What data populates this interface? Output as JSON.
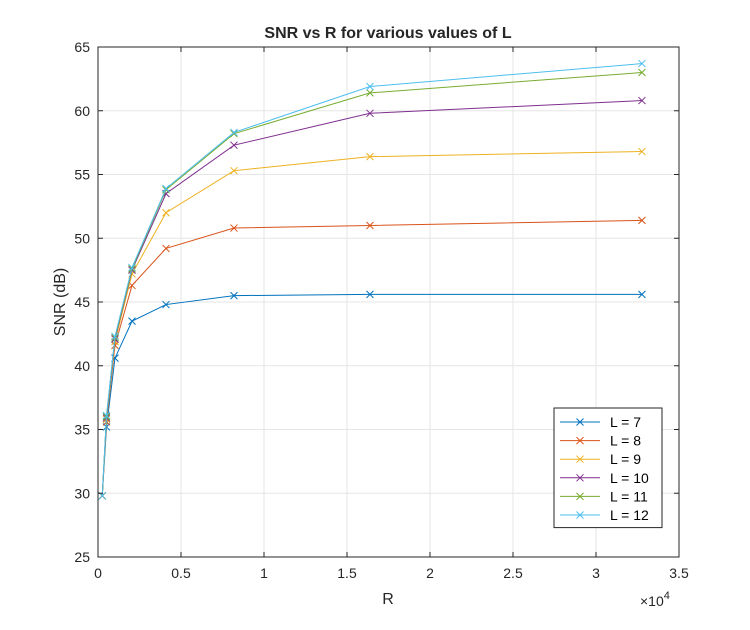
{
  "chart_data": {
    "type": "line",
    "title": "SNR vs R for various values of L",
    "xlabel": "R",
    "ylabel": "SNR (dB)",
    "x_exponent_label": "×10",
    "x_exponent_power": "4",
    "xlim": [
      0,
      3.5
    ],
    "ylim": [
      25,
      65
    ],
    "x_ticks": [
      0,
      0.5,
      1,
      1.5,
      2,
      2.5,
      3,
      3.5
    ],
    "x_tick_labels": [
      "0",
      "0.5",
      "1",
      "1.5",
      "2",
      "2.5",
      "3",
      "3.5"
    ],
    "y_ticks": [
      25,
      30,
      35,
      40,
      45,
      50,
      55,
      60,
      65
    ],
    "y_tick_labels": [
      "25",
      "30",
      "35",
      "40",
      "45",
      "50",
      "55",
      "60",
      "65"
    ],
    "grid": true,
    "legend_position": "bottom-right",
    "marker": "x",
    "x": [
      0.0256,
      0.0512,
      0.1024,
      0.2048,
      0.4096,
      0.8192,
      1.6384,
      3.2768
    ],
    "series": [
      {
        "name": "L = 7",
        "color": "#0072BD",
        "values": [
          29.8,
          35.2,
          40.6,
          43.5,
          44.8,
          45.5,
          45.6,
          45.6
        ]
      },
      {
        "name": "L = 8",
        "color": "#D95319",
        "values": [
          29.8,
          35.6,
          41.6,
          46.3,
          49.2,
          50.8,
          51.0,
          51.4
        ]
      },
      {
        "name": "L = 9",
        "color": "#EDB120",
        "values": [
          29.8,
          35.8,
          41.9,
          47.2,
          52.0,
          55.3,
          56.4,
          56.8
        ]
      },
      {
        "name": "L = 10",
        "color": "#7E2F8E",
        "values": [
          29.8,
          35.9,
          42.1,
          47.5,
          53.5,
          57.3,
          59.8,
          60.8
        ]
      },
      {
        "name": "L = 11",
        "color": "#77AC30",
        "values": [
          29.8,
          36.0,
          42.2,
          47.6,
          53.8,
          58.2,
          61.4,
          63.0
        ]
      },
      {
        "name": "L = 12",
        "color": "#4DBEEE",
        "values": [
          29.8,
          36.1,
          42.3,
          47.7,
          53.9,
          58.3,
          61.9,
          63.7
        ]
      }
    ]
  }
}
